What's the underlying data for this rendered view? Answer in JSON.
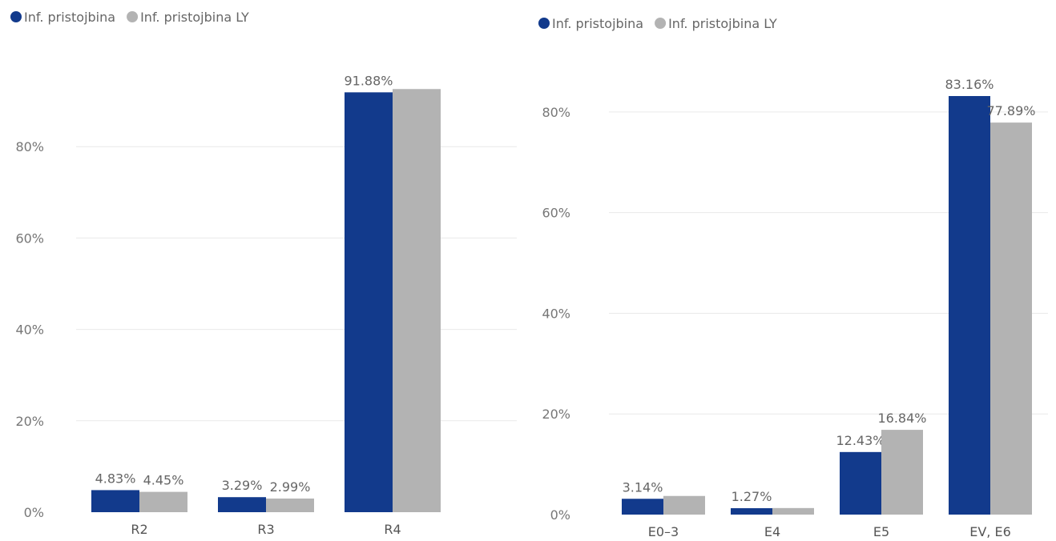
{
  "colors": {
    "current": "#123a8c",
    "last_year": "#b3b3b3"
  },
  "chart_data": [
    {
      "type": "bar",
      "title": "",
      "xlabel": "",
      "ylabel": "",
      "legend_position": "top-left",
      "grid": true,
      "ylim": [
        0,
        100
      ],
      "yticks": [
        0,
        20,
        40,
        60,
        80
      ],
      "ytick_labels": [
        "0%",
        "20%",
        "40%",
        "60%",
        "80%"
      ],
      "categories": [
        "R2",
        "R3",
        "R4"
      ],
      "series": [
        {
          "name": "Inf. pristojbina",
          "color_key": "current",
          "values": [
            4.83,
            3.29,
            91.88
          ],
          "labels": [
            "4.83%",
            "3.29%",
            "91.88%"
          ]
        },
        {
          "name": "Inf. pristojbina LY",
          "color_key": "last_year",
          "values": [
            4.45,
            2.99,
            92.6
          ],
          "labels": [
            "4.45%",
            "2.99%",
            ""
          ]
        }
      ]
    },
    {
      "type": "bar",
      "title": "",
      "xlabel": "",
      "ylabel": "",
      "legend_position": "top-left",
      "grid": true,
      "ylim": [
        0,
        90
      ],
      "yticks": [
        0,
        20,
        40,
        60,
        80
      ],
      "ytick_labels": [
        "0%",
        "20%",
        "40%",
        "60%",
        "80%"
      ],
      "categories": [
        "E0–3",
        "E4",
        "E5",
        "EV, E6"
      ],
      "series": [
        {
          "name": "Inf. pristojbina",
          "color_key": "current",
          "values": [
            3.14,
            1.27,
            12.43,
            83.16
          ],
          "labels": [
            "3.14%",
            "1.27%",
            "12.43%",
            "83.16%"
          ]
        },
        {
          "name": "Inf. pristojbina LY",
          "color_key": "last_year",
          "values": [
            3.7,
            1.3,
            16.84,
            77.89
          ],
          "labels": [
            "",
            "",
            "16.84%",
            "77.89%"
          ]
        }
      ]
    }
  ]
}
